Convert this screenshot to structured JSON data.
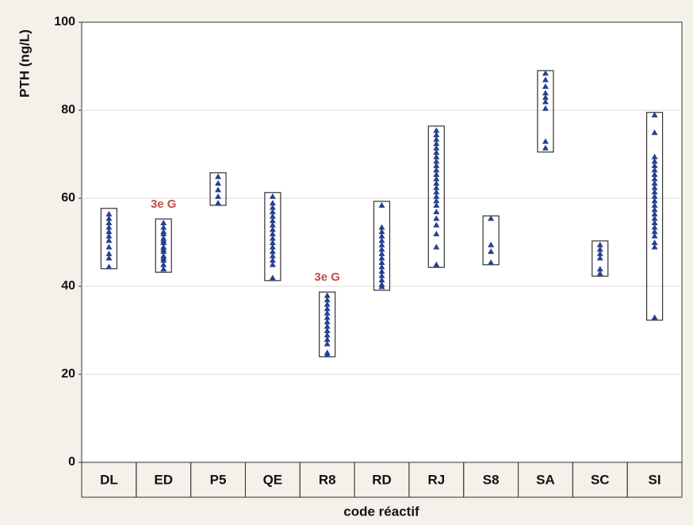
{
  "chart_data": {
    "type": "range-strip",
    "xlabel": "code réactif",
    "ylabel": "PTH (ng/L)",
    "ylim": [
      0,
      100
    ],
    "yticks": [
      0,
      20,
      40,
      60,
      80,
      100
    ],
    "grid": true,
    "color": "#26408f",
    "groups": [
      {
        "name": "DL",
        "min": 44.0,
        "max": 57.7,
        "values": [
          56.5,
          55.5,
          54.5,
          53.5,
          52.5,
          51.5,
          50.5,
          49,
          47.5,
          46.5,
          44.5
        ]
      },
      {
        "name": "ED",
        "min": 43.2,
        "max": 55.3,
        "values": [
          54.5,
          53.5,
          52.5,
          52,
          51,
          50.5,
          50,
          49,
          48.5,
          48,
          47,
          46.5,
          46,
          45,
          44
        ]
      },
      {
        "name": "P5",
        "min": 58.4,
        "max": 65.8,
        "values": [
          65,
          63.5,
          62,
          60.5,
          59
        ]
      },
      {
        "name": "QE",
        "min": 41.3,
        "max": 61.3,
        "values": [
          60.5,
          59,
          58,
          57,
          56,
          55,
          54,
          53,
          52,
          51,
          50,
          49,
          48,
          47,
          46,
          45,
          42
        ]
      },
      {
        "name": "R8",
        "min": 24.0,
        "max": 38.7,
        "values": [
          38,
          37,
          36,
          35,
          34,
          33,
          32,
          31,
          30,
          29,
          28,
          27,
          25,
          24.5
        ]
      },
      {
        "name": "RD",
        "min": 39.1,
        "max": 59.3,
        "values": [
          58.5,
          53.5,
          52.5,
          51.5,
          50.5,
          49.5,
          48.5,
          47.5,
          46.5,
          45.5,
          44.5,
          43.5,
          42.5,
          41.5,
          40.5,
          40
        ]
      },
      {
        "name": "RJ",
        "min": 44.3,
        "max": 76.4,
        "values": [
          75.5,
          74.5,
          73.5,
          72.5,
          71.5,
          70.5,
          69.5,
          68.5,
          67.5,
          66.5,
          65.5,
          64.5,
          63.5,
          62.5,
          61.5,
          60.5,
          59.5,
          58.5,
          57,
          55.5,
          54,
          52,
          49,
          45
        ]
      },
      {
        "name": "S8",
        "min": 44.9,
        "max": 56.0,
        "values": [
          55.5,
          49.5,
          48,
          45.5
        ]
      },
      {
        "name": "SA",
        "min": 70.5,
        "max": 89.0,
        "values": [
          88.5,
          87,
          85.5,
          84,
          83,
          82,
          80.5,
          73,
          71.5
        ]
      },
      {
        "name": "SC",
        "min": 42.3,
        "max": 50.3,
        "values": [
          49.5,
          48.5,
          47.5,
          46.5,
          44,
          43
        ]
      },
      {
        "name": "SI",
        "min": 32.3,
        "max": 79.5,
        "values": [
          79,
          75,
          69.5,
          68.5,
          67.5,
          66.5,
          65.5,
          64.5,
          63.5,
          62.5,
          61.5,
          60.5,
          59.5,
          58.5,
          57.5,
          56.5,
          55.5,
          54.5,
          53.5,
          52.5,
          51.5,
          50,
          49,
          33
        ]
      }
    ],
    "annotations": [
      {
        "text": "3e G",
        "group": "ED"
      },
      {
        "text": "3e G",
        "group": "R8"
      }
    ]
  }
}
